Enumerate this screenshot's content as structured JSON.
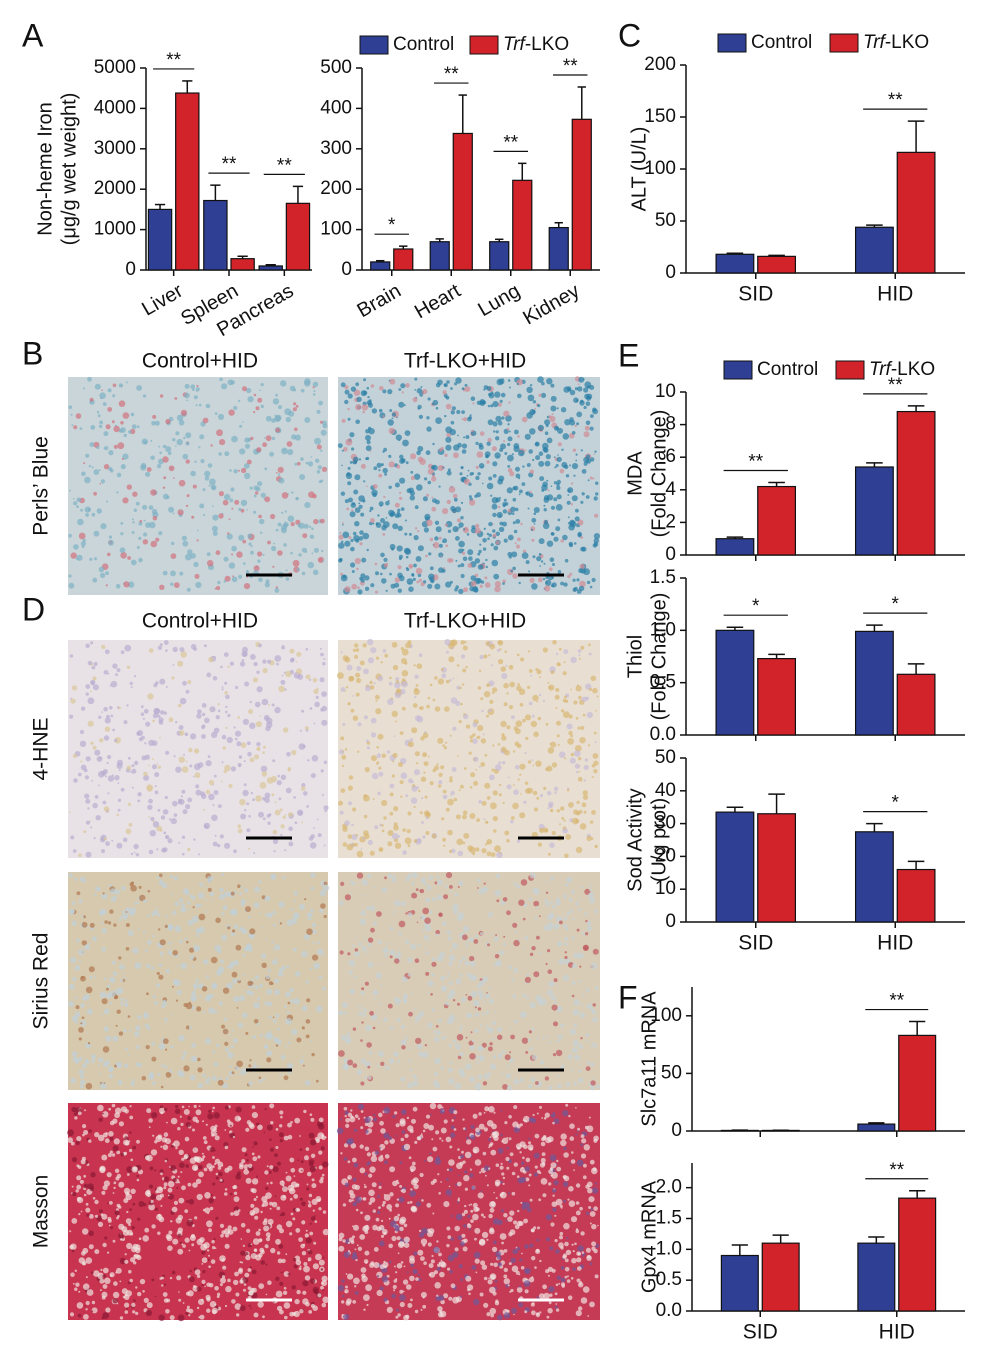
{
  "panel_letters": [
    "A",
    "B",
    "C",
    "D",
    "E",
    "F"
  ],
  "image_panels": [
    {
      "columns": [
        "Control+HID",
        "Trf-LKO+HID"
      ],
      "rows": [
        "Perls’ Blue"
      ]
    },
    {
      "columns": [
        "Control+HID",
        "Trf-LKO+HID"
      ],
      "rows": [
        "4-HNE",
        "Sirius Red",
        "Masson"
      ]
    }
  ],
  "chart_data": [
    {
      "type": "bar",
      "ylabel": [
        "Non-heme Iron",
        "(μg/g wet weight)"
      ],
      "categories": [
        "Liver",
        "Spleen",
        "Pancreas"
      ],
      "series": [
        {
          "color": "#2e3f94",
          "values": [
            1500,
            1720,
            100
          ],
          "errors": [
            120,
            380,
            30
          ]
        },
        {
          "color": "#d2232a",
          "values": [
            4380,
            280,
            1650
          ],
          "errors": [
            300,
            60,
            420
          ]
        }
      ],
      "annotations": [
        "**",
        "**",
        "**"
      ],
      "ylim": [
        0,
        5000
      ],
      "yticks": [
        0,
        1000,
        2000,
        3000,
        4000,
        5000
      ]
    },
    {
      "type": "bar",
      "categories": [
        "Brain",
        "Heart",
        "Lung",
        "Kidney"
      ],
      "legend": true,
      "series": [
        {
          "name": "Control",
          "color": "#2e3f94",
          "values": [
            20,
            70,
            70,
            105
          ],
          "errors": [
            3,
            7,
            6,
            12
          ]
        },
        {
          "name": "Trf-LKO",
          "color": "#d2232a",
          "values": [
            52,
            338,
            222,
            373
          ],
          "errors": [
            7,
            95,
            42,
            80
          ]
        }
      ],
      "annotations": [
        "*",
        "**",
        "**",
        "**"
      ],
      "ylim": [
        0,
        500
      ],
      "yticks": [
        0,
        100,
        200,
        300,
        400,
        500
      ]
    },
    {
      "type": "bar",
      "ylabel": [
        "ALT (U/L)"
      ],
      "categories": [
        "SID",
        "HID"
      ],
      "legend": true,
      "series": [
        {
          "name": "Control",
          "color": "#2e3f94",
          "values": [
            18,
            44
          ],
          "errors": [
            1,
            2
          ]
        },
        {
          "name": "Trf-LKO",
          "color": "#d2232a",
          "values": [
            16,
            116
          ],
          "errors": [
            1,
            30
          ]
        }
      ],
      "annotations": [
        null,
        "**"
      ],
      "ylim": [
        0,
        200
      ],
      "yticks": [
        0,
        50,
        100,
        150,
        200
      ]
    },
    {
      "type": "bar",
      "ylabel": [
        "MDA",
        "(Fold Change)"
      ],
      "categories": [
        null,
        null
      ],
      "legend": true,
      "series": [
        {
          "name": "Control",
          "color": "#2e3f94",
          "values": [
            1.0,
            5.4
          ],
          "errors": [
            0.1,
            0.25
          ]
        },
        {
          "name": "Trf-LKO",
          "color": "#d2232a",
          "values": [
            4.2,
            8.8
          ],
          "errors": [
            0.25,
            0.35
          ]
        }
      ],
      "annotations": [
        "**",
        "**"
      ],
      "ylim": [
        0,
        10
      ],
      "yticks": [
        0,
        2,
        4,
        6,
        8,
        10
      ]
    },
    {
      "type": "bar",
      "ylabel": [
        "Thiol",
        "(Fold Change)"
      ],
      "categories": [
        null,
        null
      ],
      "series": [
        {
          "color": "#2e3f94",
          "values": [
            1.0,
            0.99
          ],
          "errors": [
            0.03,
            0.06
          ]
        },
        {
          "color": "#d2232a",
          "values": [
            0.73,
            0.58
          ],
          "errors": [
            0.04,
            0.1
          ]
        }
      ],
      "annotations": [
        "*",
        "*"
      ],
      "ylim": [
        0,
        1.5
      ],
      "yticks": [
        {
          "value": 0,
          "label": "0.0"
        },
        0.5,
        {
          "value": 1,
          "label": "1.0"
        },
        1.5
      ]
    },
    {
      "type": "bar",
      "ylabel": [
        "Sod Activity",
        "(U/g prot)"
      ],
      "categories": [
        "SID",
        "HID"
      ],
      "series": [
        {
          "color": "#2e3f94",
          "values": [
            33.5,
            27.5
          ],
          "errors": [
            1.5,
            2.5
          ]
        },
        {
          "color": "#d2232a",
          "values": [
            33,
            16
          ],
          "errors": [
            6,
            2.5
          ]
        }
      ],
      "annotations": [
        null,
        "*"
      ],
      "ylim": [
        0,
        50
      ],
      "yticks": [
        0,
        10,
        20,
        30,
        40,
        50
      ]
    },
    {
      "type": "bar",
      "ylabel": [
        "Slc7a11 mRNA"
      ],
      "categories": [
        null,
        null
      ],
      "series": [
        {
          "color": "#2e3f94",
          "values": [
            0.5,
            6
          ],
          "errors": [
            0.3,
            1
          ]
        },
        {
          "color": "#d2232a",
          "values": [
            0.5,
            83
          ],
          "errors": [
            0.2,
            12
          ]
        }
      ],
      "annotations": [
        null,
        "**"
      ],
      "ylim": [
        0,
        125
      ],
      "yticks": [
        0,
        50,
        100
      ]
    },
    {
      "type": "bar",
      "ylabel": [
        "Gpx4 mRNA"
      ],
      "categories": [
        "SID",
        "HID"
      ],
      "series": [
        {
          "color": "#2e3f94",
          "values": [
            0.9,
            1.1
          ],
          "errors": [
            0.17,
            0.1
          ]
        },
        {
          "color": "#d2232a",
          "values": [
            1.1,
            1.83
          ],
          "errors": [
            0.13,
            0.12
          ]
        }
      ],
      "annotations": [
        null,
        "**"
      ],
      "ylim": [
        0,
        2.4
      ],
      "yticks": [
        {
          "value": 0,
          "label": "0.0"
        },
        0.5,
        {
          "value": 1,
          "label": "1.0"
        },
        1.5,
        {
          "value": 2,
          "label": "2.0"
        }
      ]
    }
  ]
}
